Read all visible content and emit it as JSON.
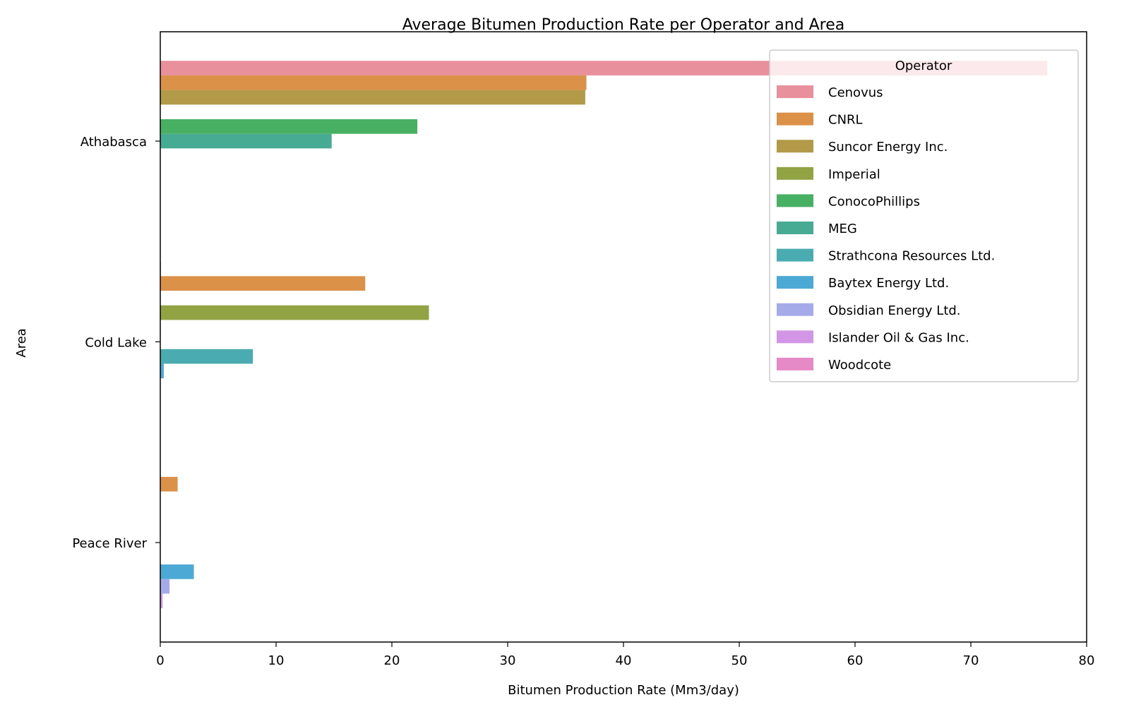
{
  "chart_data": {
    "type": "bar",
    "orientation": "horizontal",
    "title": "Average Bitumen Production Rate per Operator and Area",
    "xlabel": "Bitumen Production Rate (Mm3/day)",
    "ylabel": "Area",
    "xlim": [
      0,
      80
    ],
    "xticks": [
      0,
      10,
      20,
      30,
      40,
      50,
      60,
      70,
      80
    ],
    "categories": [
      "Athabasca",
      "Cold Lake",
      "Peace River"
    ],
    "legend": {
      "title": "Operator",
      "placement": "top-right"
    },
    "grid": false,
    "series": [
      {
        "name": "Cenovus",
        "color": "#e8919c",
        "values": [
          76.6,
          0.05,
          null
        ]
      },
      {
        "name": "CNRL",
        "color": "#dc9148",
        "values": [
          36.8,
          17.7,
          1.5
        ]
      },
      {
        "name": "Suncor Energy Inc.",
        "color": "#b39a48",
        "values": [
          36.7,
          null,
          null
        ]
      },
      {
        "name": "Imperial",
        "color": "#91a343",
        "values": [
          null,
          23.2,
          null
        ]
      },
      {
        "name": "ConocoPhillips",
        "color": "#48b063",
        "values": [
          22.2,
          null,
          null
        ]
      },
      {
        "name": "MEG",
        "color": "#47ab93",
        "values": [
          14.8,
          null,
          null
        ]
      },
      {
        "name": "Strathcona Resources Ltd.",
        "color": "#4aabb0",
        "values": [
          null,
          8.0,
          null
        ]
      },
      {
        "name": "Baytex Energy Ltd.",
        "color": "#4ca8d4",
        "values": [
          null,
          0.3,
          2.9
        ]
      },
      {
        "name": "Obsidian Energy Ltd.",
        "color": "#a5abe9",
        "values": [
          null,
          null,
          0.8
        ]
      },
      {
        "name": "Islander Oil & Gas Inc.",
        "color": "#d395e6",
        "values": [
          null,
          null,
          0.2
        ]
      },
      {
        "name": "Woodcote",
        "color": "#e58ac6",
        "values": [
          null,
          null,
          null
        ]
      }
    ]
  }
}
